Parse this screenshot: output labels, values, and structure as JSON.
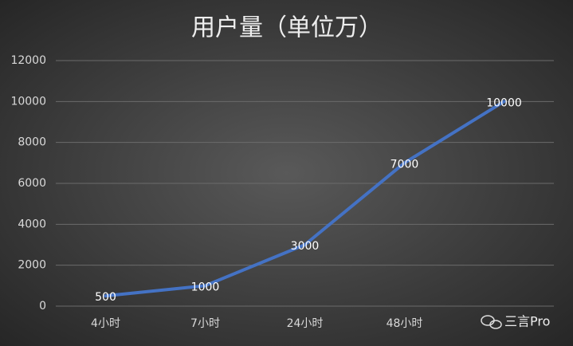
{
  "chart_data": {
    "type": "line",
    "title": "用户量（单位万）",
    "categories": [
      "4小时",
      "7小时",
      "24小时",
      "48小时",
      null
    ],
    "series": [
      {
        "name": "用户量",
        "color": "#4472c4",
        "values": [
          500,
          1000,
          3000,
          7000,
          10000
        ]
      }
    ],
    "ylim": [
      0,
      12000
    ],
    "yticks": [
      0,
      2000,
      4000,
      6000,
      8000,
      10000,
      12000
    ],
    "grid": true,
    "watermark": "三言Pro"
  }
}
